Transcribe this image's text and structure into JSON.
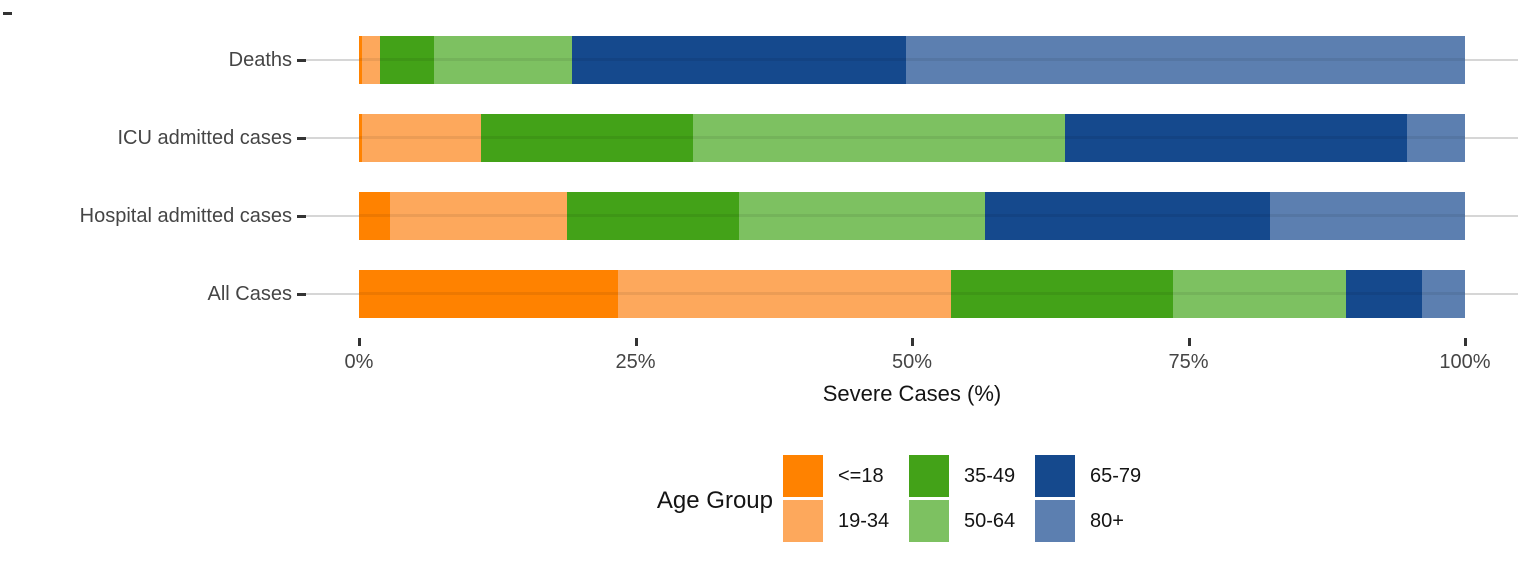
{
  "chart_data": {
    "type": "bar",
    "stacked": true,
    "orientation": "horizontal",
    "xlabel": "Severe Cases (%)",
    "ylabel": "",
    "xlim": [
      0,
      100
    ],
    "x_ticks": [
      "0%",
      "25%",
      "50%",
      "75%",
      "100%"
    ],
    "x_tick_values": [
      0,
      25,
      50,
      75,
      100
    ],
    "categories": [
      "Deaths",
      "ICU admitted cases",
      "Hospital admitted cases",
      "All Cases"
    ],
    "grid": "horizontal-only",
    "legend_title": "Age Group",
    "legend_position": "bottom",
    "series": [
      {
        "name": "<=18",
        "color": "#FF8200",
        "values": [
          0.3,
          0.3,
          2.8,
          23.4
        ]
      },
      {
        "name": "19-34",
        "color": "#FDA85C",
        "values": [
          1.6,
          10.7,
          16.0,
          30.1
        ]
      },
      {
        "name": "35-49",
        "color": "#43A218",
        "values": [
          4.9,
          19.2,
          15.6,
          20.1
        ]
      },
      {
        "name": "50-64",
        "color": "#7DC161",
        "values": [
          12.5,
          33.6,
          22.2,
          15.6
        ]
      },
      {
        "name": "65-79",
        "color": "#15498D",
        "values": [
          30.2,
          31.0,
          25.8,
          6.9
        ]
      },
      {
        "name": "80+",
        "color": "#5C7FB0",
        "values": [
          50.5,
          5.2,
          17.6,
          3.9
        ]
      }
    ],
    "legend_rows": [
      [
        "<=18",
        "35-49",
        "65-79"
      ],
      [
        "19-34",
        "50-64",
        "80+"
      ]
    ]
  }
}
